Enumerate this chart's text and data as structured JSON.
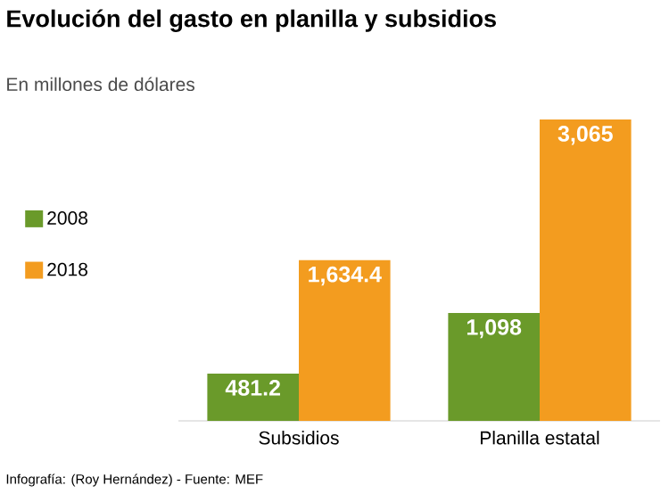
{
  "chart_data": {
    "type": "bar",
    "title": "Evolución del gasto en planilla y subsidios",
    "subtitle": "En millones de dólares",
    "categories": [
      "Subsidios",
      "Planilla estatal"
    ],
    "series": [
      {
        "name": "2008",
        "color": "#6a9a2a",
        "values": [
          481.2,
          1098
        ],
        "value_labels": [
          "481.2",
          "1,098"
        ]
      },
      {
        "name": "2018",
        "color": "#f39c1f",
        "values": [
          1634.4,
          3065
        ],
        "value_labels": [
          "1,634.4",
          "3,065"
        ]
      }
    ],
    "legend": "top left",
    "annotations": [
      "Infografía: (Roy Hernández) - Fuente: MEF"
    ]
  }
}
